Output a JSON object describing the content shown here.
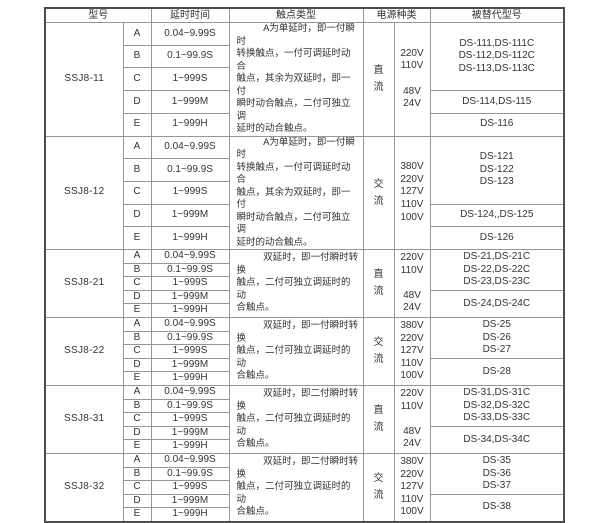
{
  "colors": {
    "background": "#ffffff",
    "text": "#333333",
    "border_inner": "#979797",
    "border_strong": "#4d4d4d"
  },
  "header": {
    "columns": [
      "型号",
      "延时时间",
      "触点类型",
      "电源种类",
      "被替代型号"
    ]
  },
  "sections": [
    {
      "model": "SSJ8-11",
      "variants": [
        {
          "code": "A",
          "delay": "0.04~9.99S"
        },
        {
          "code": "B",
          "delay": "0.1~99.9S"
        },
        {
          "code": "C",
          "delay": "1~999S"
        },
        {
          "code": "D",
          "delay": "1~999M"
        },
        {
          "code": "E",
          "delay": "1~999H"
        }
      ],
      "contact_type": "A为单延时，即一付瞬时\n转换触点，一付可调延时动合\n触点，其余为双延时，即一付\n瞬时动合触点，二付可独立调\n延时的动合触点。",
      "power_kind": "直\n流",
      "voltages": [
        "220V",
        "110V",
        "",
        "48V",
        "24V"
      ],
      "replaced_top": [
        "DS-111,DS-111C",
        "DS-112,DS-112C",
        "DS-113,DS-113C"
      ],
      "replaced_bottom": [
        "DS-114,DS-115",
        "DS-116"
      ]
    },
    {
      "model": "SSJ8-12",
      "variants": [
        {
          "code": "A",
          "delay": "0.04~9.99S"
        },
        {
          "code": "B",
          "delay": "0.1~99.9S"
        },
        {
          "code": "C",
          "delay": "1~999S"
        },
        {
          "code": "D",
          "delay": "1~999M"
        },
        {
          "code": "E",
          "delay": "1~999H"
        }
      ],
      "contact_type": "A为单延时，即一付瞬时\n转换触点，一付可调延时动合\n触点，其余为双延时，即一付\n瞬时动合触点，二付可独立调\n延时的动合触点。",
      "power_kind": "交\n流",
      "voltages": [
        "380V",
        "220V",
        "127V",
        "110V",
        "100V"
      ],
      "replaced_top": [
        "DS-121",
        "DS-122",
        "DS-123"
      ],
      "replaced_bottom": [
        "DS-124,,DS-125",
        "DS-126"
      ]
    },
    {
      "model": "SSJ8-21",
      "variants": [
        {
          "code": "A",
          "delay": "0.04~9.99S"
        },
        {
          "code": "B",
          "delay": "0.1~99.9S"
        },
        {
          "code": "C",
          "delay": "1~999S"
        },
        {
          "code": "D",
          "delay": "1~999M"
        },
        {
          "code": "E",
          "delay": "1~999H"
        }
      ],
      "contact_type": "双延时，即一付瞬时转换\n触点，二付可独立调延时的动\n合触点。",
      "power_kind": "直\n流",
      "voltages": [
        "220V",
        "110V",
        "",
        "48V",
        "24V"
      ],
      "replaced_top": [
        "DS-21,DS-21C",
        "DS-22,DS-22C",
        "DS-23,DS-23C"
      ],
      "replaced_bottom": [
        "DS-24,DS-24C"
      ]
    },
    {
      "model": "SSJ8-22",
      "variants": [
        {
          "code": "A",
          "delay": "0.04~9.99S"
        },
        {
          "code": "B",
          "delay": "0.1~99.9S"
        },
        {
          "code": "C",
          "delay": "1~999S"
        },
        {
          "code": "D",
          "delay": "1~999M"
        },
        {
          "code": "E",
          "delay": "1~999H"
        }
      ],
      "contact_type": "双延时，即一付瞬时转换\n触点，二付可独立调延时的动\n合触点。",
      "power_kind": "交\n流",
      "voltages": [
        "380V",
        "220V",
        "127V",
        "110V",
        "100V"
      ],
      "replaced_top": [
        "DS-25",
        "DS-26",
        "DS-27"
      ],
      "replaced_bottom": [
        "DS-28"
      ]
    },
    {
      "model": "SSJ8-31",
      "variants": [
        {
          "code": "A",
          "delay": "0.04~9.99S"
        },
        {
          "code": "B",
          "delay": "0.1~99.9S"
        },
        {
          "code": "C",
          "delay": "1~999S"
        },
        {
          "code": "D",
          "delay": "1~999M"
        },
        {
          "code": "E",
          "delay": "1~999H"
        }
      ],
      "contact_type": "双延时，即二付瞬时转换\n触点，二付可独立调延时的动\n合触点。",
      "power_kind": "直\n流",
      "voltages": [
        "220V",
        "110V",
        "",
        "48V",
        "24V"
      ],
      "replaced_top": [
        "DS-31,DS-31C",
        "DS-32,DS-32C",
        "DS-33,DS-33C"
      ],
      "replaced_bottom": [
        "DS-34,DS-34C"
      ]
    },
    {
      "model": "SSJ8-32",
      "variants": [
        {
          "code": "A",
          "delay": "0.04~9.99S"
        },
        {
          "code": "B",
          "delay": "0.1~99.9S"
        },
        {
          "code": "C",
          "delay": "1~999S"
        },
        {
          "code": "D",
          "delay": "1~999M"
        },
        {
          "code": "E",
          "delay": "1~999H"
        }
      ],
      "contact_type": "双延时，即二付瞬时转换\n触点，二付可独立调延时的动\n合触点。",
      "power_kind": "交\n流",
      "voltages": [
        "380V",
        "220V",
        "127V",
        "110V",
        "100V"
      ],
      "replaced_top": [
        "DS-35",
        "DS-36",
        "DS-37"
      ],
      "replaced_bottom": [
        "DS-38"
      ]
    }
  ]
}
